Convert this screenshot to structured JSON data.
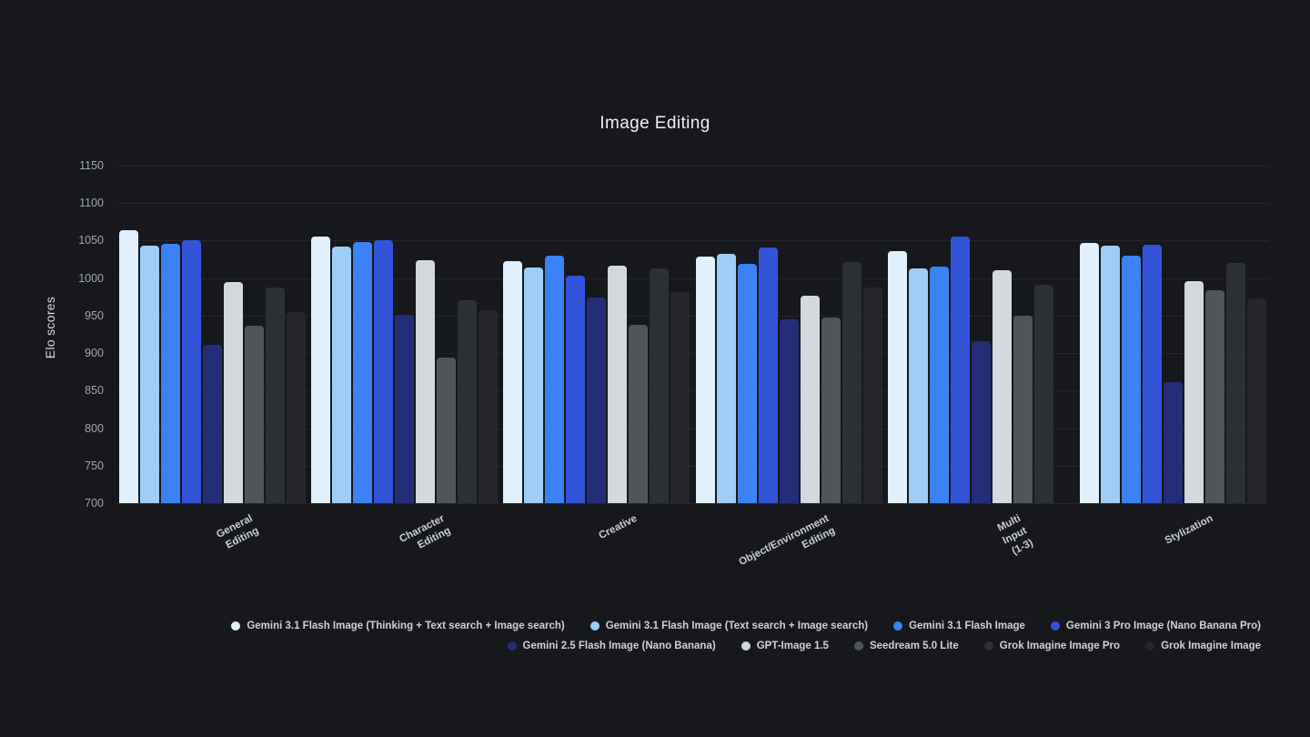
{
  "page": {
    "background": "#16181c"
  },
  "chart_data": {
    "type": "bar",
    "title": "Image Editing",
    "xlabel": "",
    "ylabel": "Elo scores",
    "ylim": [
      700,
      1150
    ],
    "yticks": [
      700,
      750,
      800,
      850,
      900,
      950,
      1000,
      1050,
      1100,
      1150
    ],
    "grid": true,
    "legend_position": "bottom",
    "gridline_color": "#24262c",
    "categories": [
      "General Editing",
      "Character Editing",
      "Creative",
      "Object/Environment\nEditing",
      "Multi Input (1-3)",
      "Stylization"
    ],
    "series": [
      {
        "name": "Gemini 3.1 Flash Image (Thinking + Text search + Image search)",
        "color": "#e1f0fc",
        "values": [
          1064,
          1055,
          1023,
          1029,
          1036,
          1047
        ]
      },
      {
        "name": "Gemini 3.1 Flash Image (Text search + Image search)",
        "color": "#9ecdf8",
        "values": [
          1043,
          1042,
          1014,
          1032,
          1013,
          1043
        ]
      },
      {
        "name": "Gemini 3.1 Flash Image",
        "color": "#3b82f6",
        "values": [
          1046,
          1048,
          1030,
          1019,
          1015,
          1030
        ]
      },
      {
        "name": "Gemini 3 Pro Image (Nano Banana Pro)",
        "color": "#3354d9",
        "values": [
          1050,
          1050,
          1003,
          1041,
          1056,
          1044
        ]
      },
      {
        "name": "Gemini 2.5 Flash Image (Nano Banana)",
        "color": "#242e78",
        "values": [
          911,
          951,
          974,
          945,
          916,
          861
        ]
      },
      {
        "name": "GPT-Image 1.5",
        "color": "#d3d8dd",
        "values": [
          995,
          1024,
          1016,
          976,
          1010,
          996
        ]
      },
      {
        "name": "Seedream 5.0 Lite",
        "color": "#50545b",
        "values": [
          936,
          894,
          938,
          947,
          950,
          984
        ]
      },
      {
        "name": "Grok Imagine Image Pro",
        "color": "#2d3036",
        "values": [
          987,
          971,
          1013,
          1021,
          991,
          1020
        ]
      },
      {
        "name": "Grok Imagine Image",
        "color": "#25272d",
        "values": [
          955,
          957,
          982,
          988,
          null,
          973
        ]
      }
    ],
    "legend_rows": [
      [
        0,
        1,
        2,
        3
      ],
      [
        4,
        5,
        6,
        7,
        8
      ]
    ]
  }
}
